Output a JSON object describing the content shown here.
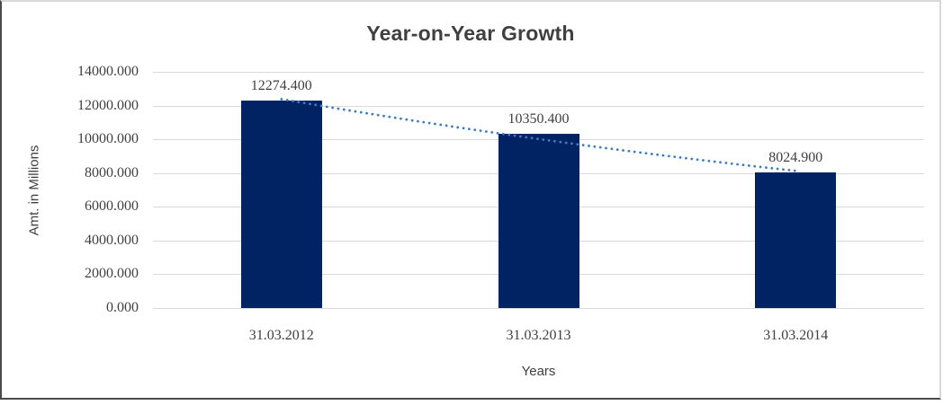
{
  "chart_data": {
    "type": "bar",
    "title": "Year-on-Year Growth",
    "categories": [
      "31.03.2012",
      "31.03.2013",
      "31.03.2014"
    ],
    "values": [
      12274.4,
      10350.4,
      8024.9
    ],
    "data_labels": [
      "12274.400",
      "10350.400",
      "8024.900"
    ],
    "xlabel": "Years",
    "ylabel": "Amt. in Millions",
    "ylim": [
      0,
      14000
    ],
    "ytick_labels": [
      "0.000",
      "2000.000",
      "4000.000",
      "6000.000",
      "8000.000",
      "10000.000",
      "12000.000",
      "14000.000"
    ],
    "grid": true,
    "legend": "none",
    "bar_color": "#022363",
    "gridline_color": "#d9d9d9",
    "text_color": "#3f3f3f",
    "trendline": {
      "style": "dotted",
      "color": "#3e7cc1",
      "from_value": 12274.4,
      "to_value": 8024.9
    }
  }
}
